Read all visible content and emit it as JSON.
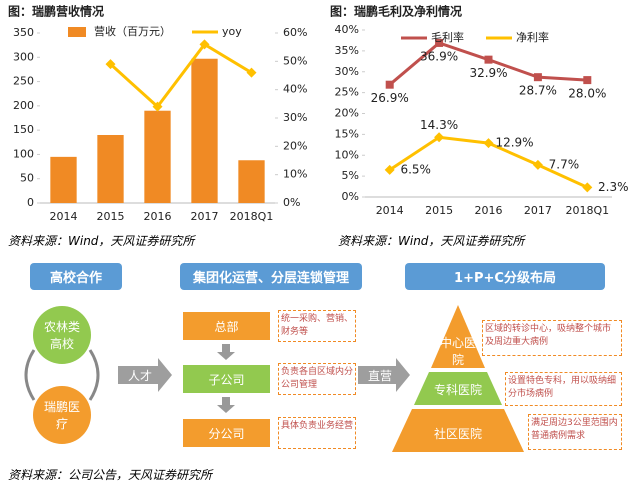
{
  "chart_data": [
    {
      "type": "bar",
      "title": "图：瑞鹏营收情况",
      "source": "资料来源：Wind，天风证券研究所",
      "categories": [
        "2014",
        "2015",
        "2016",
        "2017",
        "2018Q1"
      ],
      "series": [
        {
          "name": "营收（百万元）",
          "color": "#f08a24",
          "values": [
            95,
            140,
            190,
            297,
            88
          ]
        },
        {
          "name": "yoy",
          "color": "#ffc000",
          "axis": "y2",
          "values": [
            null,
            49,
            34,
            56,
            46
          ]
        }
      ],
      "ylim": [
        0,
        350
      ],
      "yticks": [
        0,
        50,
        100,
        150,
        200,
        250,
        300,
        350
      ],
      "y2lim": [
        0,
        60
      ],
      "y2ticks": [
        {
          "value": 0,
          "label": "0%"
        },
        {
          "value": 10,
          "label": "10%"
        },
        {
          "value": 20,
          "label": "20%"
        },
        {
          "value": 30,
          "label": "30%"
        },
        {
          "value": 40,
          "label": "40%"
        },
        {
          "value": 50,
          "label": "50%"
        },
        {
          "value": 60,
          "label": "60%"
        }
      ],
      "grid": false
    },
    {
      "type": "line",
      "title": "图：瑞鹏毛利及净利情况",
      "source": "资料来源：Wind，天风证券研究所",
      "categories": [
        "2014",
        "2015",
        "2016",
        "2017",
        "2018Q1"
      ],
      "series": [
        {
          "name": "毛利率",
          "color": "#c0504d",
          "values": [
            26.9,
            36.9,
            32.9,
            28.7,
            28.0
          ],
          "value_labels": [
            "26.9%",
            "36.9%",
            "32.9%",
            "28.7%",
            "28.0%"
          ]
        },
        {
          "name": "净利率",
          "color": "#ffc000",
          "values": [
            6.5,
            14.3,
            12.9,
            7.7,
            2.3
          ],
          "value_labels": [
            "6.5%",
            "14.3%",
            "12.9%",
            "7.7%",
            "2.3%"
          ]
        }
      ],
      "ylim": [
        0,
        40
      ],
      "yticks": [
        {
          "value": 0,
          "label": "0%"
        },
        {
          "value": 5,
          "label": "5%"
        },
        {
          "value": 10,
          "label": "10%"
        },
        {
          "value": 15,
          "label": "15%"
        },
        {
          "value": 20,
          "label": "20%"
        },
        {
          "value": 25,
          "label": "25%"
        },
        {
          "value": 30,
          "label": "30%"
        },
        {
          "value": 35,
          "label": "35%"
        },
        {
          "value": 40,
          "label": "40%"
        }
      ],
      "grid": false
    }
  ],
  "diagram": {
    "headers": [
      "高校合作",
      "集团化运营、分层连锁管理",
      "1+P+C分级布局"
    ],
    "partners": [
      "农林类高校",
      "瑞鹏医疗"
    ],
    "arrows": [
      "人才",
      "直营"
    ],
    "levels": [
      {
        "name": "总部",
        "desc": "统一采购、营销、财务等"
      },
      {
        "name": "子公司",
        "desc": "负责各自区域内分公司管理"
      },
      {
        "name": "分公司",
        "desc": "具体负责业务经营"
      }
    ],
    "hospitals": [
      {
        "name": "中心医院",
        "desc": "区域的转诊中心，吸纳整个城市及周边重大病例"
      },
      {
        "name": "专科医院",
        "desc": "设置特色专科，用以吸纳细分市场病例"
      },
      {
        "name": "社区医院",
        "desc": "满足周边3公里范围内普通病例需求"
      }
    ],
    "source": "资料来源：公司公告，天风证券研究所"
  }
}
